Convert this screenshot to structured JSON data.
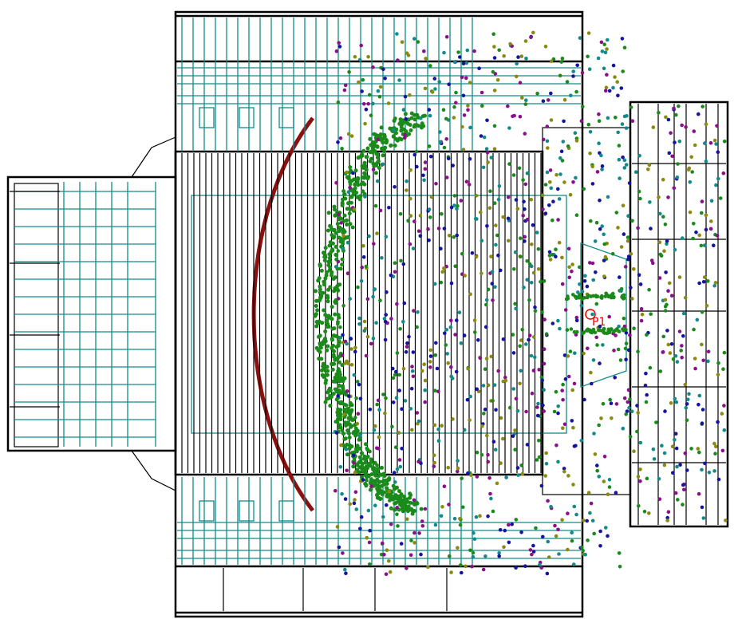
{
  "labels": {
    "vertex": "P1"
  }
}
